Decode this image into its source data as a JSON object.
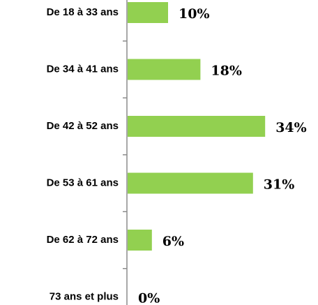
{
  "chart_data": {
    "type": "bar",
    "orientation": "horizontal",
    "categories": [
      "De 18 à 33 ans",
      "De 34 à 41 ans",
      "De 42 à 52 ans",
      "De 53 à 61 ans",
      "De 62 à 72 ans",
      "73 ans et plus"
    ],
    "values": [
      10,
      18,
      34,
      31,
      6,
      0
    ],
    "value_labels": [
      "10%",
      "18%",
      "34%",
      "31%",
      "6%",
      "0%"
    ],
    "color": "#92d050"
  }
}
